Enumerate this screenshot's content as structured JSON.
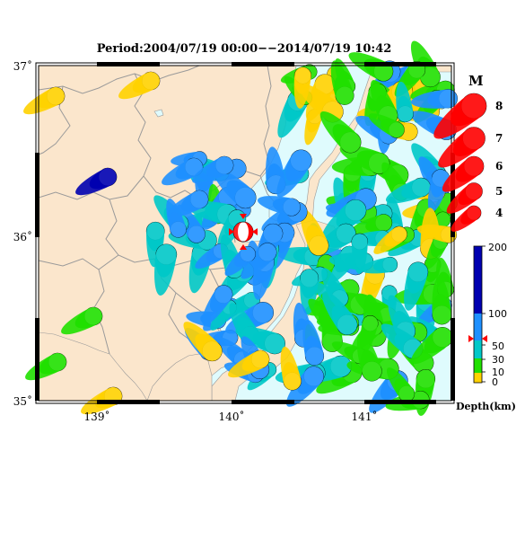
{
  "map": {
    "title": "Period:2004/07/19 00:00−−2014/07/19 10:42",
    "lat_labels": [
      "37˚",
      "36˚",
      "35˚"
    ],
    "lon_labels": [
      "139˚",
      "140˚",
      "141˚"
    ],
    "colors": {
      "land": "#fbe6cc",
      "sea": "#dffbfd",
      "border": "#9a9a9a",
      "frame": "#000000",
      "highlight": "#ff0000",
      "marker": "#ff0000"
    }
  },
  "magnitude_legend": {
    "title": "M",
    "items": [
      {
        "label": "8",
        "magnitude": 8
      },
      {
        "label": "7",
        "magnitude": 7
      },
      {
        "label": "6",
        "magnitude": 6
      },
      {
        "label": "5",
        "magnitude": 5
      },
      {
        "label": "4",
        "magnitude": 4
      }
    ]
  },
  "depth_scale": {
    "title": "Depth(km)",
    "ticks": [
      "200",
      "100",
      "50",
      "30",
      "10",
      "0"
    ],
    "colors": [
      "#ffd200",
      "#20e000",
      "#00c8c8",
      "#1e90ff",
      "#0000b0"
    ]
  },
  "events": {
    "palette": {
      "shallow": "#ffd200",
      "mid": "#20e000",
      "teal": "#00c8c8",
      "blue": "#1e90ff",
      "deep": "#0000b0"
    },
    "count": 150
  }
}
